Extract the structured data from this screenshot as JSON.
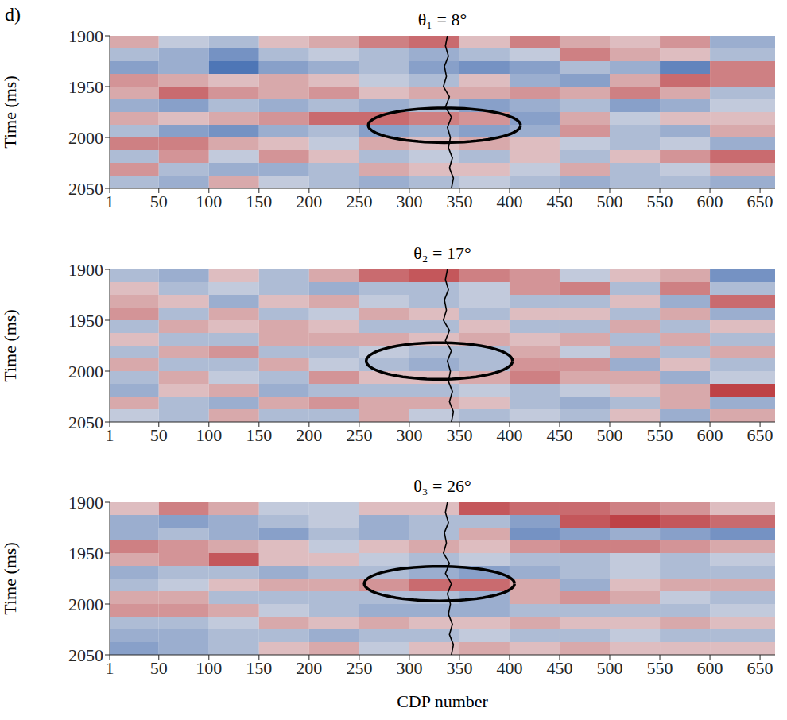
{
  "panel_label": "d)",
  "chart_data": [
    {
      "type": "heatmap",
      "title": "θ₁ = 8°",
      "ylabel": "Time (ms)",
      "xlim": [
        1,
        665
      ],
      "xticks": [
        1,
        50,
        100,
        150,
        200,
        250,
        300,
        350,
        400,
        450,
        500,
        550,
        600,
        650
      ],
      "ylim": [
        1900,
        2050
      ],
      "yticks": [
        1900,
        1950,
        2000,
        2050
      ],
      "x_edges": [
        1,
        50,
        100,
        150,
        200,
        250,
        300,
        350,
        400,
        450,
        500,
        550,
        600,
        665
      ],
      "y_edges": [
        1900,
        1912.5,
        1925,
        1937.5,
        1950,
        1962.5,
        1975,
        1987.5,
        2000,
        2012.5,
        2025,
        2037.5,
        2050
      ],
      "color_range": [
        -1,
        1
      ],
      "cells": [
        [
          0.3,
          -0.2,
          -0.3,
          0.2,
          0.3,
          0.5,
          0.6,
          0.2,
          0.5,
          0.3,
          0.2,
          0.4,
          -0.4
        ],
        [
          -0.3,
          -0.4,
          -0.6,
          -0.3,
          -0.2,
          -0.3,
          -0.4,
          -0.3,
          -0.2,
          0.5,
          0.3,
          0.2,
          -0.3
        ],
        [
          -0.5,
          -0.4,
          -0.8,
          -0.5,
          -0.4,
          -0.3,
          -0.5,
          -0.6,
          -0.5,
          -0.3,
          -0.4,
          -0.7,
          0.5
        ],
        [
          0.4,
          0.3,
          0.2,
          0.3,
          0.2,
          -0.2,
          -0.3,
          0.2,
          -0.4,
          -0.5,
          0.3,
          0.6,
          0.5
        ],
        [
          0.3,
          0.6,
          0.4,
          0.3,
          0.4,
          0.2,
          0.3,
          0.3,
          0.4,
          0.3,
          0.5,
          0.3,
          -0.3
        ],
        [
          -0.4,
          -0.5,
          -0.3,
          -0.4,
          -0.3,
          -0.4,
          -0.3,
          -0.5,
          -0.4,
          -0.3,
          -0.5,
          -0.4,
          -0.2
        ],
        [
          0.3,
          0.2,
          0.3,
          0.4,
          0.6,
          0.6,
          0.5,
          0.4,
          -0.5,
          0.3,
          -0.2,
          0.2,
          0.2
        ],
        [
          -0.3,
          -0.5,
          -0.6,
          -0.4,
          -0.3,
          -0.5,
          -0.4,
          -0.5,
          -0.4,
          0.4,
          -0.3,
          -0.4,
          0.3
        ],
        [
          0.5,
          0.5,
          0.3,
          0.2,
          -0.2,
          0.3,
          0.2,
          0.3,
          0.2,
          -0.2,
          -0.3,
          -0.2,
          -0.4
        ],
        [
          -0.3,
          0.4,
          -0.2,
          0.4,
          0.2,
          -0.3,
          -0.2,
          -0.3,
          0.2,
          -0.3,
          0.2,
          0.4,
          0.6
        ],
        [
          0.4,
          -0.3,
          -0.4,
          -0.4,
          -0.3,
          0.3,
          0.2,
          0.2,
          -0.2,
          0.3,
          -0.3,
          -0.2,
          0.3
        ],
        [
          -0.3,
          -0.4,
          0.3,
          -0.2,
          -0.3,
          -0.4,
          -0.3,
          -0.2,
          -0.3,
          -0.4,
          -0.3,
          -0.3,
          -0.4
        ]
      ],
      "well_log": {
        "x": [
          338,
          336,
          339,
          335,
          337,
          334,
          340,
          336,
          342,
          338,
          341,
          339,
          343,
          340,
          344,
          342
        ],
        "y": [
          1900,
          1910,
          1920,
          1930,
          1940,
          1950,
          1960,
          1970,
          1980,
          1990,
          2000,
          2010,
          2020,
          2030,
          2040,
          2050
        ]
      },
      "annotations": [
        {
          "type": "ellipse",
          "center": [
            335,
            1988
          ],
          "radii": [
            76,
            17
          ]
        }
      ]
    },
    {
      "type": "heatmap",
      "title": "θ₂ = 17°",
      "ylabel": "Time (ms)",
      "xlim": [
        1,
        665
      ],
      "xticks": [
        1,
        50,
        100,
        150,
        200,
        250,
        300,
        350,
        400,
        450,
        500,
        550,
        600,
        650
      ],
      "ylim": [
        1900,
        2050
      ],
      "yticks": [
        1900,
        1950,
        2000,
        2050
      ],
      "x_edges": [
        1,
        50,
        100,
        150,
        200,
        250,
        300,
        350,
        400,
        450,
        500,
        550,
        600,
        665
      ],
      "y_edges": [
        1900,
        1912.5,
        1925,
        1937.5,
        1950,
        1962.5,
        1975,
        1987.5,
        2000,
        2012.5,
        2025,
        2037.5,
        2050
      ],
      "color_range": [
        -1,
        1
      ],
      "cells": [
        [
          -0.3,
          -0.4,
          0.2,
          -0.3,
          0.3,
          0.6,
          0.7,
          0.5,
          0.4,
          -0.2,
          0.2,
          0.3,
          -0.6
        ],
        [
          0.2,
          -0.3,
          -0.2,
          -0.3,
          -0.4,
          -0.3,
          -0.3,
          -0.2,
          0.4,
          0.5,
          -0.3,
          0.5,
          -0.3
        ],
        [
          0.3,
          0.2,
          -0.4,
          0.2,
          0.3,
          -0.2,
          -0.3,
          -0.2,
          -0.3,
          -0.3,
          0.2,
          -0.4,
          0.6
        ],
        [
          0.4,
          -0.3,
          0.3,
          -0.3,
          -0.2,
          0.3,
          0.2,
          -0.3,
          0.2,
          0.2,
          -0.3,
          0.3,
          -0.4
        ],
        [
          -0.3,
          0.3,
          0.2,
          0.3,
          0.2,
          -0.3,
          -0.3,
          0.2,
          -0.3,
          -0.3,
          0.3,
          -0.3,
          0.2
        ],
        [
          0.2,
          -0.3,
          -0.3,
          0.3,
          0.3,
          0.3,
          0.2,
          0.3,
          0.2,
          0.3,
          -0.3,
          0.3,
          -0.3
        ],
        [
          -0.3,
          0.3,
          0.4,
          -0.3,
          -0.3,
          -0.2,
          -0.3,
          -0.3,
          0.3,
          -0.2,
          0.3,
          -0.3,
          0.3
        ],
        [
          0.3,
          -0.3,
          -0.3,
          0.3,
          -0.2,
          -0.3,
          -0.4,
          -0.3,
          0.4,
          0.4,
          -0.4,
          0.2,
          -0.3
        ],
        [
          -0.3,
          0.3,
          -0.2,
          -0.3,
          0.4,
          0.2,
          0.2,
          0.3,
          0.5,
          0.3,
          0.3,
          -0.4,
          -0.2
        ],
        [
          -0.4,
          0.2,
          0.3,
          -0.4,
          -0.3,
          -0.3,
          -0.3,
          -0.2,
          -0.3,
          -0.2,
          0.2,
          0.3,
          0.8
        ],
        [
          0.3,
          -0.3,
          -0.4,
          0.3,
          0.4,
          0.3,
          0.3,
          0.2,
          -0.3,
          -0.4,
          -0.3,
          0.3,
          -0.4
        ],
        [
          -0.2,
          -0.3,
          0.3,
          -0.3,
          -0.3,
          0.3,
          -0.2,
          -0.3,
          -0.2,
          -0.3,
          0.2,
          -0.4,
          0.3
        ]
      ],
      "well_log": {
        "x": [
          338,
          336,
          339,
          335,
          337,
          334,
          340,
          336,
          342,
          338,
          341,
          339,
          343,
          340,
          344,
          342
        ],
        "y": [
          1900,
          1910,
          1920,
          1930,
          1940,
          1950,
          1960,
          1970,
          1980,
          1990,
          2000,
          2010,
          2020,
          2030,
          2040,
          2050
        ]
      },
      "annotations": [
        {
          "type": "ellipse",
          "center": [
            330,
            1990
          ],
          "radii": [
            73,
            18
          ]
        }
      ]
    },
    {
      "type": "heatmap",
      "title": "θ₃ = 26°",
      "xlabel": "CDP number",
      "ylabel": "Time (ms)",
      "xlim": [
        1,
        665
      ],
      "xticks": [
        1,
        50,
        100,
        150,
        200,
        250,
        300,
        350,
        400,
        450,
        500,
        550,
        600,
        650
      ],
      "ylim": [
        1900,
        2050
      ],
      "yticks": [
        1900,
        1950,
        2000,
        2050
      ],
      "x_edges": [
        1,
        50,
        100,
        150,
        200,
        250,
        300,
        350,
        400,
        450,
        500,
        550,
        600,
        665
      ],
      "y_edges": [
        1900,
        1912.5,
        1925,
        1937.5,
        1950,
        1962.5,
        1975,
        1987.5,
        2000,
        2012.5,
        2025,
        2037.5,
        2050
      ],
      "color_range": [
        -1,
        1
      ],
      "cells": [
        [
          0.2,
          0.5,
          0.3,
          -0.2,
          -0.2,
          0.2,
          0.2,
          0.7,
          0.6,
          0.6,
          0.5,
          0.4,
          0.2
        ],
        [
          -0.4,
          -0.5,
          -0.4,
          -0.3,
          -0.2,
          -0.4,
          -0.3,
          -0.3,
          -0.5,
          0.7,
          0.8,
          0.7,
          0.6
        ],
        [
          -0.4,
          -0.3,
          -0.4,
          -0.5,
          -0.3,
          -0.4,
          -0.3,
          0.3,
          -0.6,
          -0.5,
          -0.4,
          -0.5,
          -0.6
        ],
        [
          0.5,
          0.4,
          0.3,
          0.2,
          -0.2,
          0.2,
          0.3,
          0.2,
          0.4,
          0.5,
          0.5,
          0.4,
          0.3
        ],
        [
          0.3,
          0.4,
          0.7,
          0.2,
          0.2,
          -0.2,
          -0.3,
          -0.2,
          -0.3,
          -0.3,
          -0.2,
          -0.3,
          -0.2
        ],
        [
          -0.4,
          -0.3,
          -0.3,
          -0.4,
          -0.3,
          -0.3,
          -0.4,
          -0.5,
          -0.4,
          -0.3,
          -0.2,
          -0.3,
          -0.3
        ],
        [
          -0.3,
          -0.2,
          0.2,
          0.3,
          0.3,
          0.4,
          0.6,
          0.6,
          0.3,
          -0.4,
          0.2,
          0.3,
          0.3
        ],
        [
          0.3,
          0.3,
          -0.3,
          -0.3,
          -0.3,
          -0.3,
          -0.3,
          -0.4,
          0.3,
          0.4,
          0.3,
          -0.2,
          -0.3
        ],
        [
          0.4,
          0.4,
          0.3,
          -0.2,
          -0.3,
          -0.4,
          -0.4,
          -0.4,
          -0.3,
          -0.3,
          -0.3,
          -0.3,
          -0.2
        ],
        [
          -0.3,
          -0.3,
          -0.2,
          0.3,
          0.2,
          0.3,
          0.2,
          0.2,
          0.3,
          0.2,
          0.2,
          0.3,
          0.2
        ],
        [
          -0.4,
          -0.4,
          -0.3,
          -0.3,
          -0.4,
          -0.3,
          -0.3,
          -0.2,
          -0.3,
          -0.3,
          -0.2,
          -0.3,
          -0.3
        ],
        [
          -0.5,
          -0.4,
          -0.3,
          0.2,
          0.3,
          -0.2,
          0.2,
          0.3,
          0.2,
          0.3,
          0.2,
          0.2,
          0.2
        ]
      ],
      "well_log": {
        "x": [
          338,
          336,
          339,
          335,
          337,
          334,
          340,
          336,
          342,
          338,
          341,
          339,
          343,
          340,
          344,
          342
        ],
        "y": [
          1900,
          1910,
          1920,
          1930,
          1940,
          1950,
          1960,
          1970,
          1980,
          1990,
          2000,
          2010,
          2020,
          2030,
          2040,
          2050
        ]
      },
      "annotations": [
        {
          "type": "ellipse",
          "center": [
            330,
            1980
          ],
          "radii": [
            75,
            17
          ]
        }
      ]
    }
  ]
}
